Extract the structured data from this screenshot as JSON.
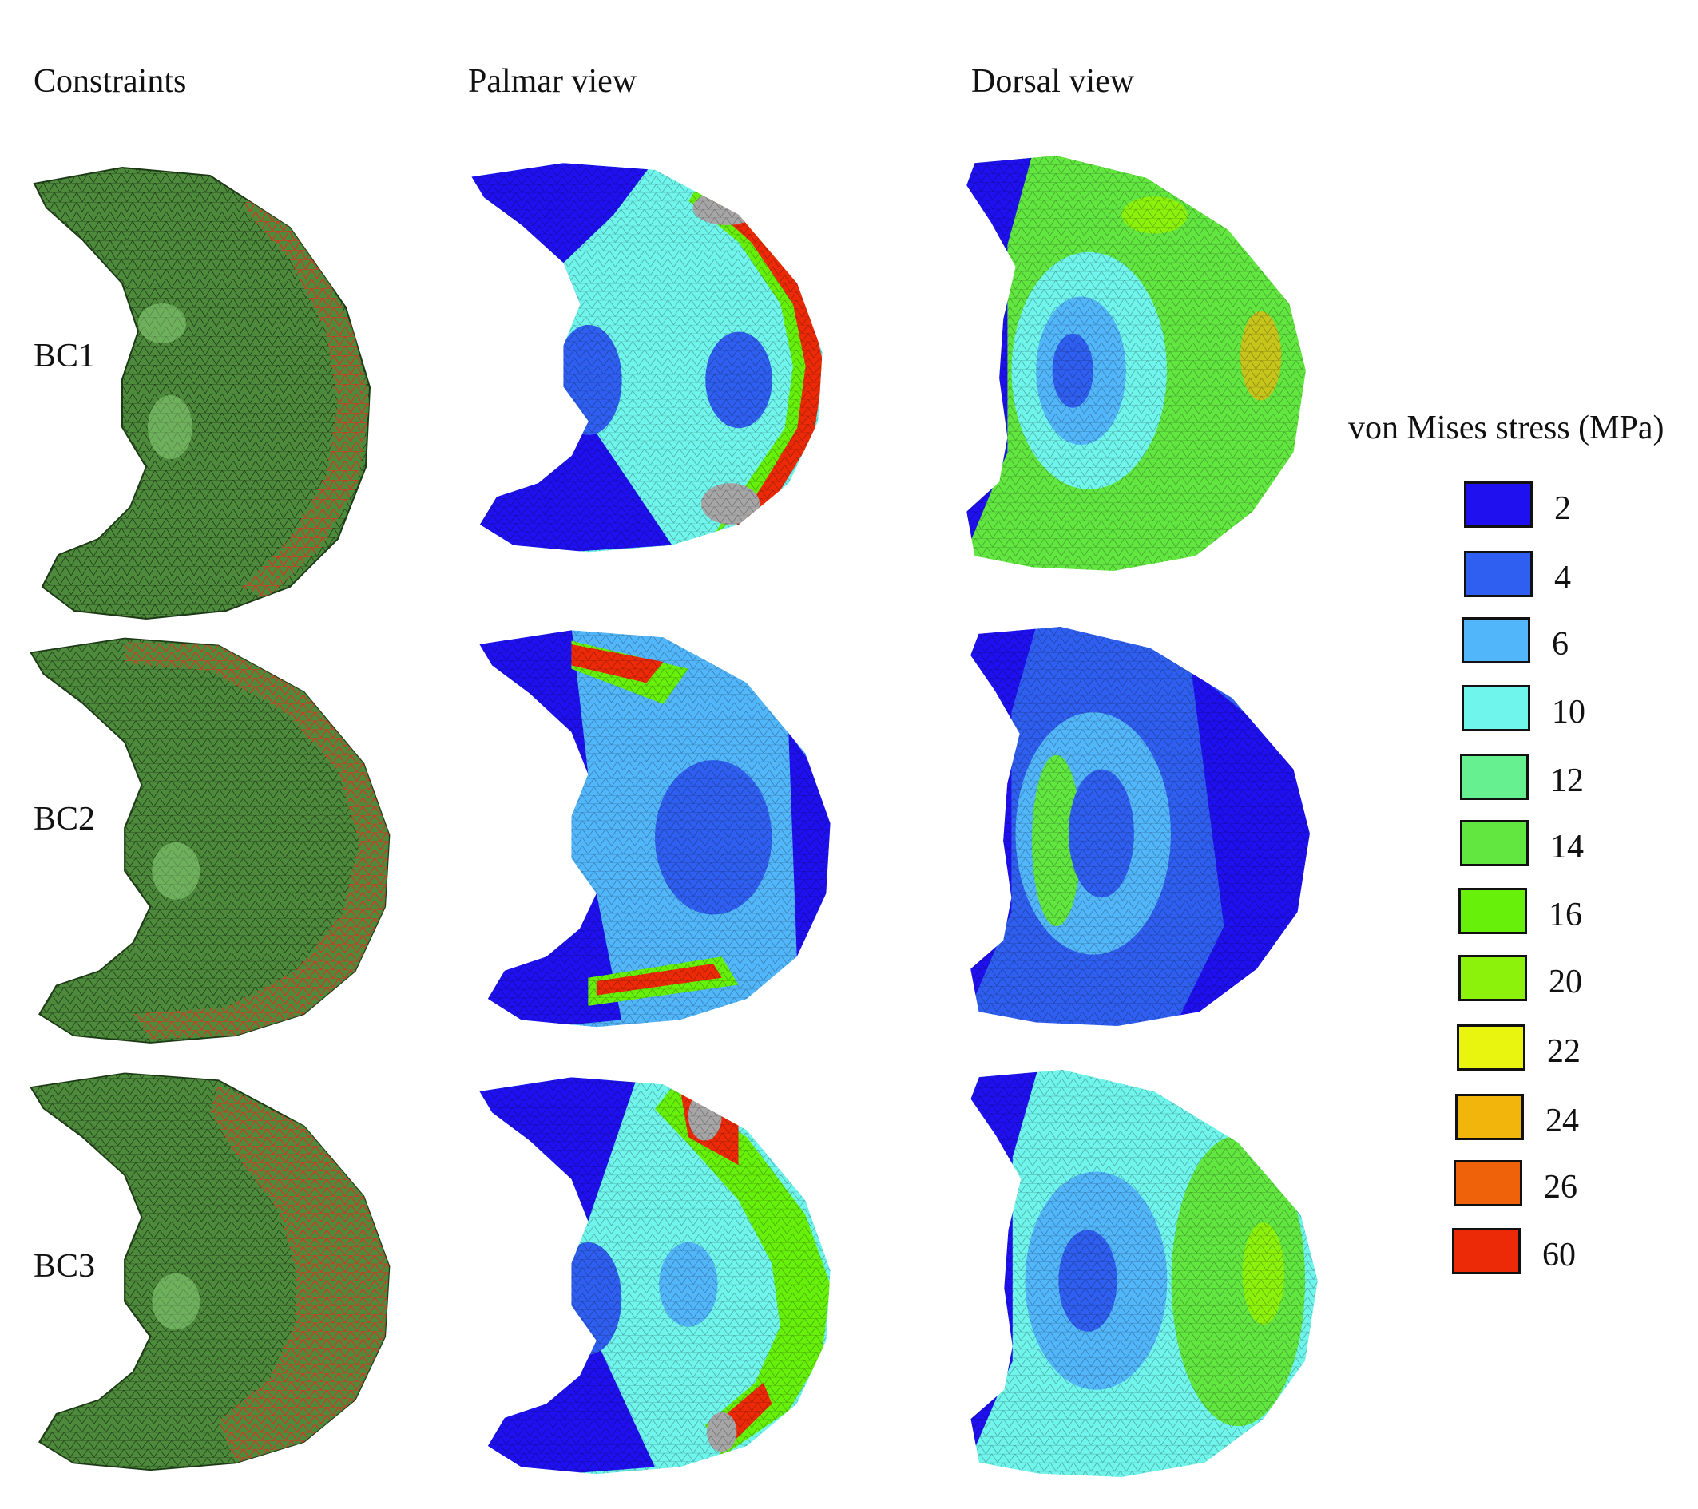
{
  "columns": {
    "constraints": "Constraints",
    "palmar": "Palmar view",
    "dorsal": "Dorsal view"
  },
  "rows": [
    "BC1",
    "BC2",
    "BC3"
  ],
  "legend": {
    "title": "von Mises stress (MPa)",
    "items": [
      {
        "value": "2",
        "color": "#1f10f0"
      },
      {
        "value": "4",
        "color": "#2f5ff0"
      },
      {
        "value": "6",
        "color": "#52b6fb"
      },
      {
        "value": "10",
        "color": "#6ff5ec"
      },
      {
        "value": "12",
        "color": "#66f08f"
      },
      {
        "value": "14",
        "color": "#62e640"
      },
      {
        "value": "16",
        "color": "#66f00a"
      },
      {
        "value": "20",
        "color": "#8cf20c"
      },
      {
        "value": "22",
        "color": "#e9f50e"
      },
      {
        "value": "24",
        "color": "#f2b50b"
      },
      {
        "value": "26",
        "color": "#f0620a"
      },
      {
        "value": "60",
        "color": "#ec2a08"
      }
    ]
  },
  "colors": {
    "mesh_green": "#4e8a3c",
    "mesh_green_light": "#8fd67e",
    "constraint_red": "#e23a22",
    "high_stress_grey": "#a6a6a6"
  }
}
